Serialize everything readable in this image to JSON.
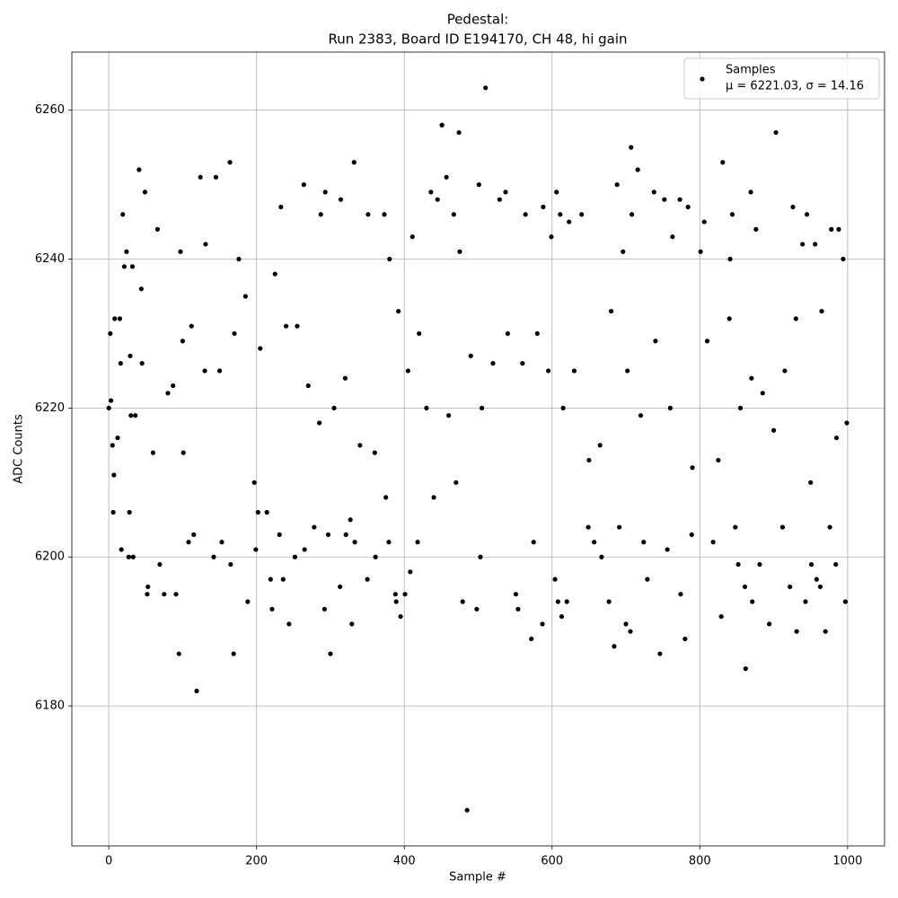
{
  "chart_data": {
    "type": "scatter",
    "title": [
      "Pedestal:",
      "Run 2383, Board ID E194170, CH 48, hi gain"
    ],
    "x_label": "Sample #",
    "y_label": "ADC Counts",
    "legend_note": "μ = 6221.03, σ = 14.16",
    "legend_position": "upper right",
    "grid": true,
    "xlim": [
      -50,
      1050
    ],
    "ylim": [
      6161.2,
      6267.8
    ],
    "xticks": [
      0,
      200,
      400,
      600,
      800,
      1000
    ],
    "yticks": [
      6180,
      6200,
      6220,
      6240,
      6260
    ],
    "series": [
      {
        "name": "Samples",
        "color": "#000000",
        "x": [
          0,
          2,
          3,
          5,
          6,
          7,
          8,
          12,
          15,
          16,
          17,
          19,
          21,
          24,
          27,
          28,
          29,
          30,
          32,
          33,
          36,
          41,
          44,
          45,
          49,
          52,
          53,
          60,
          66,
          69,
          75,
          80,
          87,
          91,
          95,
          97,
          100,
          101,
          108,
          112,
          115,
          119,
          124,
          130,
          131,
          142,
          145,
          150,
          153,
          164,
          165,
          169,
          170,
          176,
          185,
          188,
          197,
          199,
          202,
          205,
          214,
          219,
          221,
          225,
          231,
          233,
          236,
          240,
          244,
          252,
          255,
          264,
          265,
          270,
          278,
          285,
          287,
          292,
          293,
          297,
          300,
          305,
          313,
          314,
          320,
          321,
          327,
          329,
          332,
          333,
          340,
          350,
          351,
          360,
          361,
          373,
          375,
          379,
          380,
          388,
          389,
          392,
          395,
          401,
          405,
          408,
          411,
          418,
          420,
          430,
          436,
          440,
          445,
          451,
          457,
          460,
          467,
          470,
          474,
          475,
          479,
          485,
          490,
          498,
          501,
          503,
          505,
          510,
          520,
          529,
          537,
          540,
          551,
          554,
          560,
          564,
          572,
          575,
          580,
          587,
          588,
          595,
          599,
          604,
          606,
          608,
          611,
          613,
          615,
          620,
          623,
          630,
          640,
          649,
          650,
          657,
          665,
          667,
          677,
          680,
          684,
          688,
          691,
          696,
          700,
          702,
          706,
          707,
          708,
          716,
          720,
          724,
          729,
          738,
          740,
          746,
          752,
          756,
          760,
          763,
          773,
          774,
          780,
          784,
          789,
          790,
          801,
          806,
          810,
          818,
          825,
          829,
          831,
          840,
          841,
          844,
          848,
          852,
          855,
          861,
          862,
          869,
          870,
          871,
          876,
          881,
          885,
          894,
          900,
          903,
          912,
          915,
          922,
          926,
          930,
          931,
          939,
          943,
          945,
          950,
          951,
          956,
          958,
          963,
          965,
          970,
          976,
          978,
          984,
          985,
          988,
          994,
          997,
          999
        ],
        "values": [
          6220,
          6230,
          6221,
          6215,
          6206,
          6211,
          6232,
          6216,
          6232,
          6226,
          6201,
          6246,
          6239,
          6241,
          6200,
          6206,
          6227,
          6219,
          6239,
          6200,
          6219,
          6252,
          6236,
          6226,
          6249,
          6195,
          6196,
          6214,
          6244,
          6199,
          6195,
          6222,
          6223,
          6195,
          6187,
          6241,
          6229,
          6214,
          6202,
          6231,
          6203,
          6182,
          6251,
          6225,
          6242,
          6200,
          6251,
          6225,
          6202,
          6253,
          6199,
          6187,
          6230,
          6240,
          6235,
          6194,
          6210,
          6201,
          6206,
          6228,
          6206,
          6197,
          6193,
          6238,
          6203,
          6247,
          6197,
          6231,
          6191,
          6200,
          6231,
          6250,
          6201,
          6223,
          6204,
          6218,
          6246,
          6193,
          6249,
          6203,
          6187,
          6220,
          6196,
          6248,
          6224,
          6203,
          6205,
          6191,
          6253,
          6202,
          6215,
          6197,
          6246,
          6214,
          6200,
          6246,
          6208,
          6202,
          6240,
          6195,
          6194,
          6233,
          6192,
          6195,
          6225,
          6198,
          6243,
          6202,
          6230,
          6220,
          6249,
          6208,
          6248,
          6258,
          6251,
          6219,
          6246,
          6210,
          6257,
          6241,
          6194,
          6166,
          6227,
          6193,
          6250,
          6200,
          6220,
          6263,
          6226,
          6248,
          6249,
          6230,
          6195,
          6193,
          6226,
          6246,
          6189,
          6202,
          6230,
          6191,
          6247,
          6225,
          6243,
          6197,
          6249,
          6194,
          6246,
          6192,
          6220,
          6194,
          6245,
          6225,
          6246,
          6204,
          6213,
          6202,
          6215,
          6200,
          6194,
          6233,
          6188,
          6250,
          6204,
          6241,
          6191,
          6225,
          6190,
          6255,
          6246,
          6252,
          6219,
          6202,
          6197,
          6249,
          6229,
          6187,
          6248,
          6201,
          6220,
          6243,
          6248,
          6195,
          6189,
          6247,
          6203,
          6212,
          6241,
          6245,
          6229,
          6202,
          6213,
          6192,
          6253,
          6232,
          6240,
          6246,
          6204,
          6199,
          6220,
          6196,
          6185,
          6249,
          6224,
          6194,
          6244,
          6199,
          6222,
          6191,
          6217,
          6257,
          6204,
          6225,
          6196,
          6247,
          6232,
          6190,
          6242,
          6194,
          6246,
          6210,
          6199,
          6242,
          6197,
          6196,
          6233,
          6190,
          6204,
          6244,
          6199,
          6216,
          6244,
          6240,
          6194,
          6218
        ]
      }
    ]
  }
}
